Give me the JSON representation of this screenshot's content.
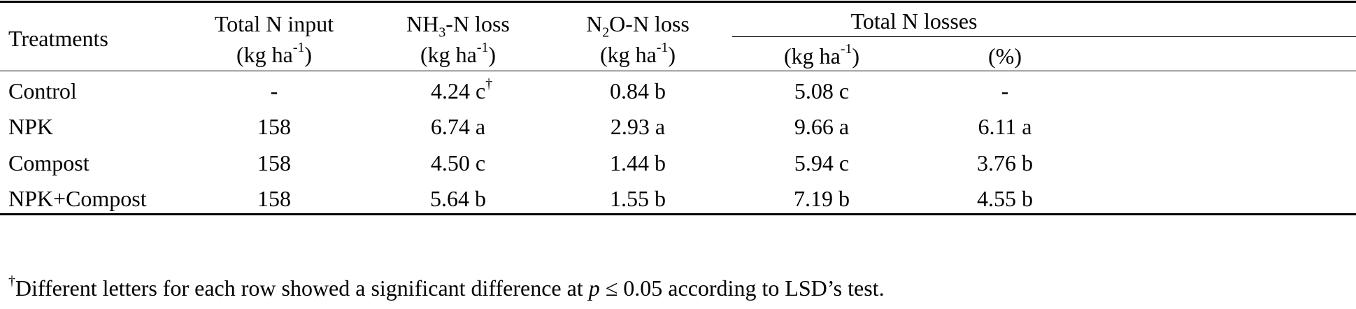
{
  "header": {
    "treatments": "Treatments",
    "total_n_input": "Total N input",
    "nh3_prefix": "NH",
    "nh3_sub": "3",
    "nh3_suffix": "-N loss",
    "n2o_prefix": "N",
    "n2o_sub": "2",
    "n2o_suffix": "O-N loss",
    "total_n_losses": "Total N losses",
    "unit_prefix": "(kg ha",
    "unit_sup": "-1",
    "unit_suffix": ")",
    "percent": "(%)"
  },
  "rows": [
    {
      "treatment": "Control",
      "input": "-",
      "nh3": "4.24 c",
      "nh3_mark": "†",
      "n2o": "0.84 b",
      "total": "5.08 c",
      "pct": "-"
    },
    {
      "treatment": "NPK",
      "input": "158",
      "nh3": "6.74 a",
      "nh3_mark": "",
      "n2o": "2.93 a",
      "total": "9.66 a",
      "pct": "6.11 a"
    },
    {
      "treatment": "Compost",
      "input": "158",
      "nh3": "4.50 c",
      "nh3_mark": "",
      "n2o": "1.44 b",
      "total": "5.94 c",
      "pct": "3.76 b"
    },
    {
      "treatment": "NPK+Compost",
      "input": "158",
      "nh3": "5.64 b",
      "nh3_mark": "",
      "n2o": "1.55 b",
      "total": "7.19 b",
      "pct": "4.55 b"
    }
  ],
  "footnote": {
    "mark": "†",
    "text_before": "Different letters for each row showed a significant difference at ",
    "p": "p",
    "text_after": " ≤ 0.05 according to LSD’s test."
  }
}
